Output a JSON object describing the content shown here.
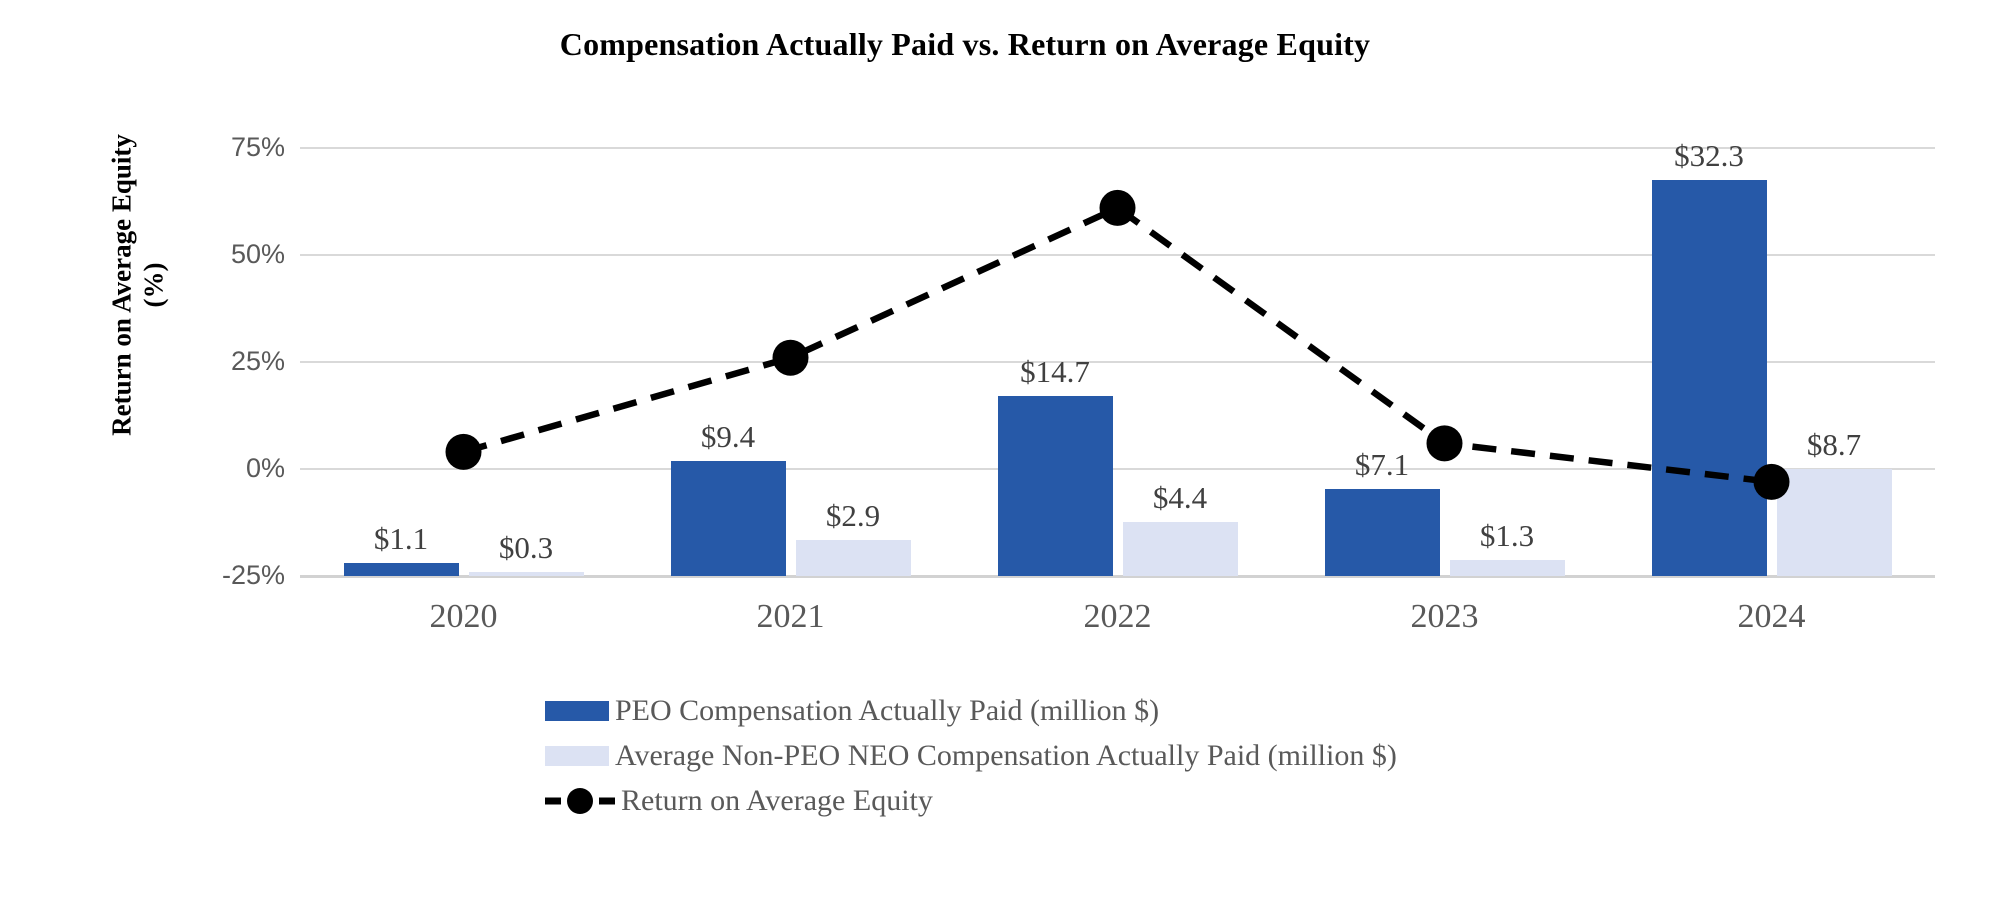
{
  "title": "Compensation Actually Paid vs. Return on Average Equity",
  "chart_data": {
    "type": "combo (grouped bars + dashed line)",
    "categories": [
      "2020",
      "2021",
      "2022",
      "2023",
      "2024"
    ],
    "series": [
      {
        "name": "PEO Compensation Actually Paid (million $)",
        "type": "bar",
        "color": "#2659A8",
        "values": [
          1.1,
          9.4,
          14.7,
          7.1,
          32.3
        ],
        "labels": [
          "$1.1",
          "$9.4",
          "$14.7",
          "$7.1",
          "$32.3"
        ]
      },
      {
        "name": "Average Non-PEO NEO Compensation Actually Paid (million $)",
        "type": "bar",
        "color": "#DCE2F3",
        "values": [
          0.3,
          2.9,
          4.4,
          1.3,
          8.7
        ],
        "labels": [
          "$0.3",
          "$2.9",
          "$4.4",
          "$1.3",
          "$8.7"
        ]
      },
      {
        "name": "Return on Average Equity",
        "type": "line",
        "color": "#000000",
        "line_style": "dashed",
        "marker": "filled-circle",
        "values_percent": [
          4,
          26,
          61,
          6,
          -3
        ]
      }
    ],
    "y_axis": {
      "label_lines": [
        "Return on Average Equity",
        "(%)"
      ],
      "ticks": [
        {
          "label": "75%",
          "value": 75
        },
        {
          "label": "50%",
          "value": 50
        },
        {
          "label": "25%",
          "value": 25
        },
        {
          "label": "0%",
          "value": 0
        },
        {
          "label": "-25%",
          "value": -25
        }
      ],
      "range": [
        -25,
        75
      ]
    },
    "x_axis": {
      "ticks": [
        "2020",
        "2021",
        "2022",
        "2023",
        "2024"
      ]
    },
    "hidden_bar_axis_max_million": 34.9,
    "grid": "horizontal-only",
    "legend_position": "bottom-left",
    "colors": {
      "gridline": "#D9D9D9",
      "tick_text": "#595959",
      "data_label_text": "#404040",
      "line": "#000000"
    }
  }
}
